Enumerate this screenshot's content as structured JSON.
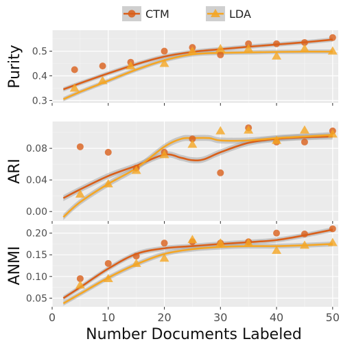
{
  "chart_data": {
    "type": "scatter",
    "xlabel": "Number Documents Labeled",
    "x_ticks": [
      0,
      10,
      20,
      30,
      40,
      50
    ],
    "xlim": [
      0,
      51
    ],
    "legend": {
      "position": "top",
      "entries": [
        {
          "name": "CTM",
          "color": "#d95f1a",
          "shape": "circle"
        },
        {
          "name": "LDA",
          "color": "#f5a623",
          "shape": "triangle"
        }
      ]
    },
    "colors": {
      "ctm": "#d95f1a",
      "lda": "#f5a623",
      "panel_bg": "#ebebeb",
      "band": "#999999"
    },
    "panels": [
      {
        "ylabel": "Purity",
        "ylim": [
          0.29,
          0.585
        ],
        "y_ticks": [
          0.3,
          0.4,
          0.5
        ],
        "y_tick_labels": [
          "0.3",
          "0.4",
          "0.5"
        ],
        "series": [
          {
            "name": "CTM",
            "points": [
              [
                4,
                0.425
              ],
              [
                9,
                0.44
              ],
              [
                14,
                0.455
              ],
              [
                20,
                0.5
              ],
              [
                25,
                0.515
              ],
              [
                30,
                0.485
              ],
              [
                35,
                0.53
              ],
              [
                40,
                0.53
              ],
              [
                45,
                0.535
              ],
              [
                50,
                0.555
              ]
            ],
            "smooth": [
              [
                2,
                0.345
              ],
              [
                5,
                0.37
              ],
              [
                10,
                0.41
              ],
              [
                15,
                0.447
              ],
              [
                20,
                0.478
              ],
              [
                25,
                0.497
              ],
              [
                30,
                0.508
              ],
              [
                35,
                0.518
              ],
              [
                40,
                0.527
              ],
              [
                45,
                0.536
              ],
              [
                50,
                0.547
              ]
            ]
          },
          {
            "name": "LDA",
            "points": [
              [
                4,
                0.35
              ],
              [
                9,
                0.38
              ],
              [
                14,
                0.44
              ],
              [
                20,
                0.45
              ],
              [
                25,
                0.5
              ],
              [
                30,
                0.51
              ],
              [
                35,
                0.51
              ],
              [
                40,
                0.48
              ],
              [
                45,
                0.51
              ],
              [
                50,
                0.5
              ]
            ],
            "smooth": [
              [
                2,
                0.305
              ],
              [
                5,
                0.335
              ],
              [
                10,
                0.38
              ],
              [
                15,
                0.425
              ],
              [
                20,
                0.463
              ],
              [
                25,
                0.487
              ],
              [
                30,
                0.493
              ],
              [
                35,
                0.495
              ],
              [
                40,
                0.497
              ],
              [
                45,
                0.498
              ],
              [
                50,
                0.498
              ]
            ]
          }
        ]
      },
      {
        "ylabel": "ARI",
        "ylim": [
          -0.012,
          0.114
        ],
        "y_ticks": [
          0.0,
          0.04,
          0.08
        ],
        "y_tick_labels": [
          "0.00",
          "0.04",
          "0.08"
        ],
        "series": [
          {
            "name": "CTM",
            "points": [
              [
                5,
                0.082
              ],
              [
                10,
                0.075
              ],
              [
                15,
                0.055
              ],
              [
                20,
                0.075
              ],
              [
                25,
                0.092
              ],
              [
                30,
                0.049
              ],
              [
                35,
                0.106
              ],
              [
                40,
                0.088
              ],
              [
                45,
                0.088
              ],
              [
                50,
                0.102
              ]
            ],
            "smooth": [
              [
                2,
                0.017
              ],
              [
                5,
                0.028
              ],
              [
                10,
                0.045
              ],
              [
                15,
                0.058
              ],
              [
                20,
                0.072
              ],
              [
                23,
                0.068
              ],
              [
                25,
                0.065
              ],
              [
                27,
                0.066
              ],
              [
                30,
                0.075
              ],
              [
                35,
                0.087
              ],
              [
                40,
                0.092
              ],
              [
                45,
                0.094
              ],
              [
                50,
                0.095
              ]
            ]
          },
          {
            "name": "LDA",
            "points": [
              [
                5,
                0.022
              ],
              [
                10,
                0.035
              ],
              [
                15,
                0.052
              ],
              [
                20,
                0.072
              ],
              [
                25,
                0.085
              ],
              [
                30,
                0.102
              ],
              [
                35,
                0.103
              ],
              [
                40,
                0.09
              ],
              [
                45,
                0.103
              ],
              [
                50,
                0.098
              ]
            ],
            "smooth": [
              [
                2,
                -0.007
              ],
              [
                5,
                0.012
              ],
              [
                10,
                0.035
              ],
              [
                15,
                0.055
              ],
              [
                20,
                0.082
              ],
              [
                23,
                0.092
              ],
              [
                25,
                0.093
              ],
              [
                28,
                0.093
              ],
              [
                30,
                0.09
              ],
              [
                35,
                0.09
              ],
              [
                40,
                0.093
              ],
              [
                45,
                0.095
              ],
              [
                50,
                0.097
              ]
            ]
          }
        ]
      },
      {
        "ylabel": "ANMI",
        "ylim": [
          0.03,
          0.22
        ],
        "y_ticks": [
          0.05,
          0.1,
          0.15,
          0.2
        ],
        "y_tick_labels": [
          "0.05",
          "0.10",
          "0.15",
          "0.20"
        ],
        "series": [
          {
            "name": "CTM",
            "points": [
              [
                5,
                0.095
              ],
              [
                10,
                0.13
              ],
              [
                15,
                0.147
              ],
              [
                20,
                0.177
              ],
              [
                25,
                0.18
              ],
              [
                30,
                0.177
              ],
              [
                35,
                0.18
              ],
              [
                40,
                0.2
              ],
              [
                45,
                0.198
              ],
              [
                50,
                0.21
              ]
            ],
            "smooth": [
              [
                2,
                0.05
              ],
              [
                5,
                0.075
              ],
              [
                10,
                0.118
              ],
              [
                15,
                0.152
              ],
              [
                20,
                0.165
              ],
              [
                25,
                0.17
              ],
              [
                30,
                0.175
              ],
              [
                35,
                0.179
              ],
              [
                40,
                0.184
              ],
              [
                45,
                0.195
              ],
              [
                50,
                0.208
              ]
            ]
          },
          {
            "name": "LDA",
            "points": [
              [
                5,
                0.08
              ],
              [
                10,
                0.095
              ],
              [
                15,
                0.13
              ],
              [
                20,
                0.142
              ],
              [
                25,
                0.185
              ],
              [
                30,
                0.177
              ],
              [
                35,
                0.177
              ],
              [
                40,
                0.16
              ],
              [
                45,
                0.172
              ],
              [
                50,
                0.178
              ]
            ],
            "smooth": [
              [
                2,
                0.038
              ],
              [
                5,
                0.06
              ],
              [
                10,
                0.097
              ],
              [
                15,
                0.128
              ],
              [
                20,
                0.152
              ],
              [
                25,
                0.163
              ],
              [
                30,
                0.168
              ],
              [
                35,
                0.17
              ],
              [
                40,
                0.17
              ],
              [
                45,
                0.172
              ],
              [
                50,
                0.175
              ]
            ]
          }
        ]
      }
    ]
  }
}
